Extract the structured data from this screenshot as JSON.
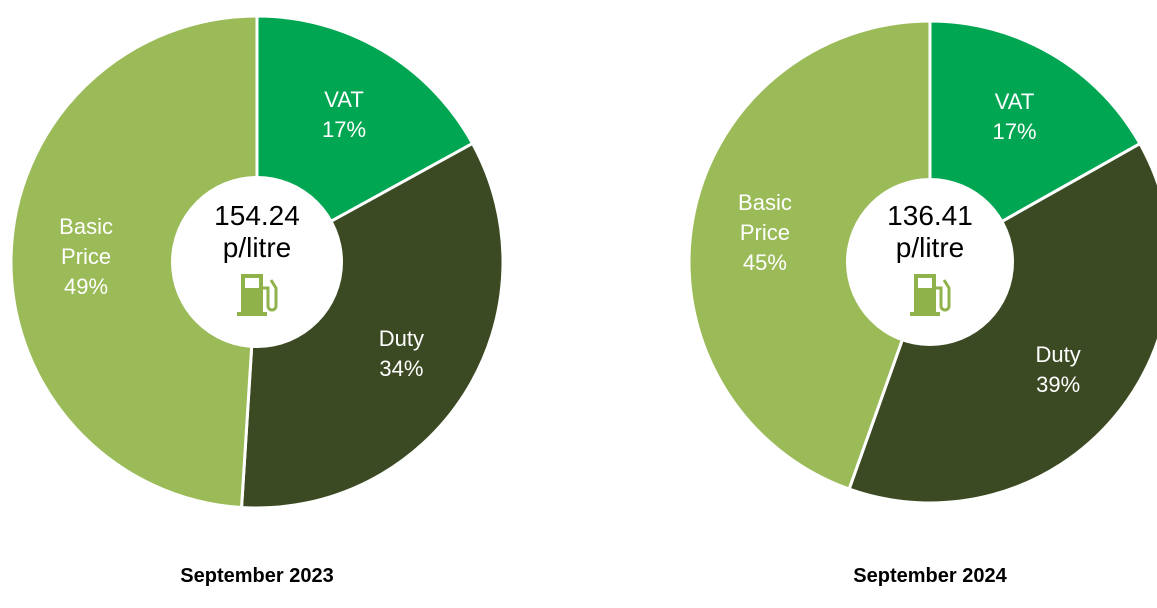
{
  "chart_data": [
    {
      "type": "pie",
      "title": "September 2023",
      "center_value": 154.24,
      "center_unit": "p/litre",
      "categories": [
        "VAT",
        "Duty",
        "Basic Price"
      ],
      "values": [
        17,
        34,
        49
      ],
      "value_labels": [
        "17%",
        "34%",
        "49%"
      ],
      "colors": [
        "#00a651",
        "#3b4a22",
        "#9bbb59"
      ]
    },
    {
      "type": "pie",
      "title": "September 2024",
      "center_value": 136.41,
      "center_unit": "p/litre",
      "categories": [
        "VAT",
        "Duty",
        "Basic Price"
      ],
      "values": [
        17,
        39,
        45
      ],
      "value_labels": [
        "17%",
        "39%",
        "45%"
      ],
      "colors": [
        "#00a651",
        "#3b4a22",
        "#9bbb59"
      ]
    }
  ]
}
